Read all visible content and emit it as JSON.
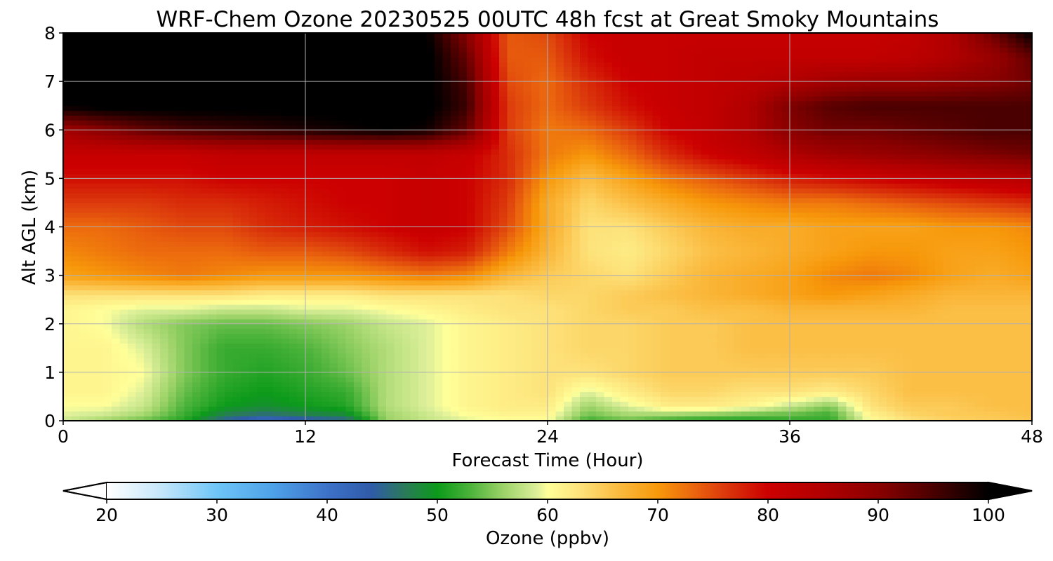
{
  "chart_data": {
    "type": "heatmap",
    "title": "WRF-Chem Ozone  20230525 00UTC 48h fcst at Great Smoky Mountains",
    "xlabel": "Forecast Time (Hour)",
    "ylabel": "Alt AGL (km)",
    "xlim": [
      0,
      48
    ],
    "ylim": [
      0,
      8
    ],
    "x_ticks": [
      0,
      12,
      24,
      36,
      48
    ],
    "y_ticks": [
      0,
      1,
      2,
      3,
      4,
      5,
      6,
      7,
      8
    ],
    "x_tick_labels": [
      "0",
      "12",
      "24",
      "36",
      "48"
    ],
    "y_tick_labels": [
      "0",
      "1",
      "2",
      "3",
      "4",
      "5",
      "6",
      "7",
      "8"
    ],
    "grid": true,
    "x": [
      0,
      2,
      4,
      6,
      8,
      10,
      12,
      14,
      16,
      18,
      20,
      22,
      24,
      26,
      28,
      30,
      32,
      34,
      36,
      38,
      40,
      42,
      44,
      46,
      48
    ],
    "y": [
      0,
      0.1,
      0.3,
      0.6,
      1,
      1.5,
      2,
      2.3,
      2.6,
      3,
      3.5,
      4,
      4.5,
      5,
      5.5,
      6,
      6.5,
      7,
      7.5,
      8
    ],
    "z": [
      [
        58,
        56,
        54,
        51,
        44,
        40,
        42,
        44,
        56,
        58,
        59,
        60,
        60,
        52,
        54,
        52,
        51,
        51,
        52,
        52,
        60,
        63,
        64,
        65,
        65
      ],
      [
        59,
        58,
        56,
        52,
        47,
        45,
        47,
        48,
        56,
        58,
        60,
        61,
        61,
        54,
        56,
        55,
        54,
        53,
        53,
        52,
        61,
        64,
        65,
        65,
        66
      ],
      [
        60,
        60,
        58,
        53,
        50,
        49,
        50,
        51,
        57,
        59,
        61,
        62,
        62,
        56,
        59,
        62,
        62,
        61,
        58,
        55,
        63,
        65,
        65,
        66,
        66
      ],
      [
        61,
        61,
        59,
        54,
        51,
        50,
        51,
        52,
        57,
        59,
        61,
        62,
        63,
        59,
        62,
        64,
        64,
        63,
        63,
        62,
        64,
        66,
        66,
        66,
        66
      ],
      [
        61,
        61,
        60,
        55,
        52,
        51,
        52,
        54,
        57,
        59,
        61,
        62,
        63,
        63,
        64,
        65,
        65,
        65,
        65,
        65,
        65,
        66,
        66,
        66,
        66
      ],
      [
        61,
        61,
        59,
        55,
        52,
        52,
        53,
        55,
        57,
        59,
        61,
        62,
        63,
        64,
        64,
        65,
        65,
        66,
        66,
        66,
        66,
        66,
        66,
        66,
        66
      ],
      [
        61,
        60,
        57,
        55,
        54,
        54,
        55,
        56,
        58,
        59,
        61,
        62,
        63,
        64,
        64,
        65,
        65,
        66,
        66,
        66,
        66,
        66,
        66,
        66,
        66
      ],
      [
        61,
        60,
        59,
        59,
        58,
        58,
        59,
        59,
        60,
        61,
        62,
        63,
        63,
        64,
        65,
        65,
        66,
        66,
        67,
        67,
        67,
        67,
        66,
        66,
        66
      ],
      [
        63,
        63,
        63,
        63,
        63,
        62,
        62,
        62,
        63,
        63,
        63,
        63,
        64,
        64,
        65,
        66,
        67,
        68,
        69,
        70,
        69,
        68,
        67,
        67,
        67
      ],
      [
        69,
        70,
        71,
        72,
        71,
        70,
        70,
        70,
        71,
        72,
        71,
        67,
        65,
        64,
        63,
        65,
        67,
        68,
        69,
        71,
        72,
        71,
        69,
        68,
        69
      ],
      [
        71,
        72,
        73,
        73,
        73,
        74,
        74,
        75,
        77,
        79,
        78,
        72,
        67,
        63,
        62,
        64,
        66,
        67,
        68,
        69,
        70,
        70,
        69,
        69,
        70
      ],
      [
        73,
        73,
        74,
        75,
        75,
        77,
        78,
        79,
        80,
        81,
        80,
        75,
        68,
        63,
        63,
        65,
        67,
        68,
        68,
        69,
        69,
        69,
        70,
        70,
        71
      ],
      [
        76,
        76,
        76,
        77,
        77,
        78,
        79,
        80,
        80,
        81,
        80,
        76,
        68,
        64,
        66,
        68,
        70,
        71,
        72,
        72,
        73,
        74,
        75,
        76,
        77
      ],
      [
        79,
        79,
        79,
        79,
        80,
        80,
        80,
        80,
        80,
        81,
        80,
        77,
        70,
        66,
        69,
        72,
        74,
        76,
        78,
        79,
        80,
        81,
        82,
        83,
        84
      ],
      [
        81,
        81,
        81,
        81,
        82,
        82,
        82,
        82,
        82,
        82,
        81,
        77,
        72,
        70,
        73,
        77,
        80,
        82,
        85,
        87,
        88,
        89,
        90,
        91,
        92
      ],
      [
        87,
        90,
        93,
        95,
        96,
        97,
        98,
        99,
        100,
        99,
        93,
        76,
        72,
        73,
        76,
        80,
        82,
        85,
        90,
        92,
        92,
        93,
        94,
        95,
        95
      ],
      [
        100,
        101,
        101,
        101,
        101,
        101,
        101,
        101,
        101,
        101,
        96,
        76,
        73,
        76,
        79,
        81,
        82,
        85,
        91,
        94,
        95,
        95,
        95,
        95,
        95
      ],
      [
        101,
        101,
        101,
        101,
        101,
        101,
        101,
        101,
        101,
        101,
        95,
        75,
        73,
        77,
        80,
        81,
        82,
        83,
        85,
        87,
        88,
        88,
        89,
        90,
        92
      ],
      [
        101,
        101,
        101,
        101,
        101,
        101,
        101,
        101,
        101,
        101,
        93,
        74,
        74,
        79,
        81,
        81,
        82,
        82,
        82,
        82,
        82,
        83,
        85,
        88,
        93
      ],
      [
        101,
        101,
        101,
        101,
        101,
        101,
        101,
        101,
        101,
        100,
        90,
        74,
        75,
        80,
        81,
        81,
        81,
        81,
        81,
        81,
        81,
        82,
        85,
        92,
        100
      ]
    ],
    "colorbar": {
      "label": "Ozone  (ppbv)",
      "min": 20,
      "max": 100,
      "extend": "both",
      "ticks": [
        20,
        30,
        40,
        50,
        60,
        70,
        80,
        90,
        100
      ],
      "tick_labels": [
        "20",
        "30",
        "40",
        "50",
        "60",
        "70",
        "80",
        "90",
        "100"
      ],
      "stops": [
        {
          "value": 20,
          "color": "#ffffff"
        },
        {
          "value": 25,
          "color": "#c4e6fa"
        },
        {
          "value": 30,
          "color": "#6ec5f7"
        },
        {
          "value": 35,
          "color": "#4ea2e8"
        },
        {
          "value": 40,
          "color": "#3d72c9"
        },
        {
          "value": 44,
          "color": "#2f5ba8"
        },
        {
          "value": 47,
          "color": "#2a7a5a"
        },
        {
          "value": 50,
          "color": "#0c9a1a"
        },
        {
          "value": 53,
          "color": "#4cb33a"
        },
        {
          "value": 56,
          "color": "#9dd369"
        },
        {
          "value": 59,
          "color": "#dcef99"
        },
        {
          "value": 60,
          "color": "#ffff99"
        },
        {
          "value": 63,
          "color": "#fde27a"
        },
        {
          "value": 66,
          "color": "#fbbf46"
        },
        {
          "value": 70,
          "color": "#f7980a"
        },
        {
          "value": 73,
          "color": "#ec6a0e"
        },
        {
          "value": 76,
          "color": "#dc3a0c"
        },
        {
          "value": 80,
          "color": "#cc0000"
        },
        {
          "value": 85,
          "color": "#b10000"
        },
        {
          "value": 90,
          "color": "#8a0000"
        },
        {
          "value": 95,
          "color": "#4a0000"
        },
        {
          "value": 100,
          "color": "#000000"
        }
      ]
    }
  }
}
